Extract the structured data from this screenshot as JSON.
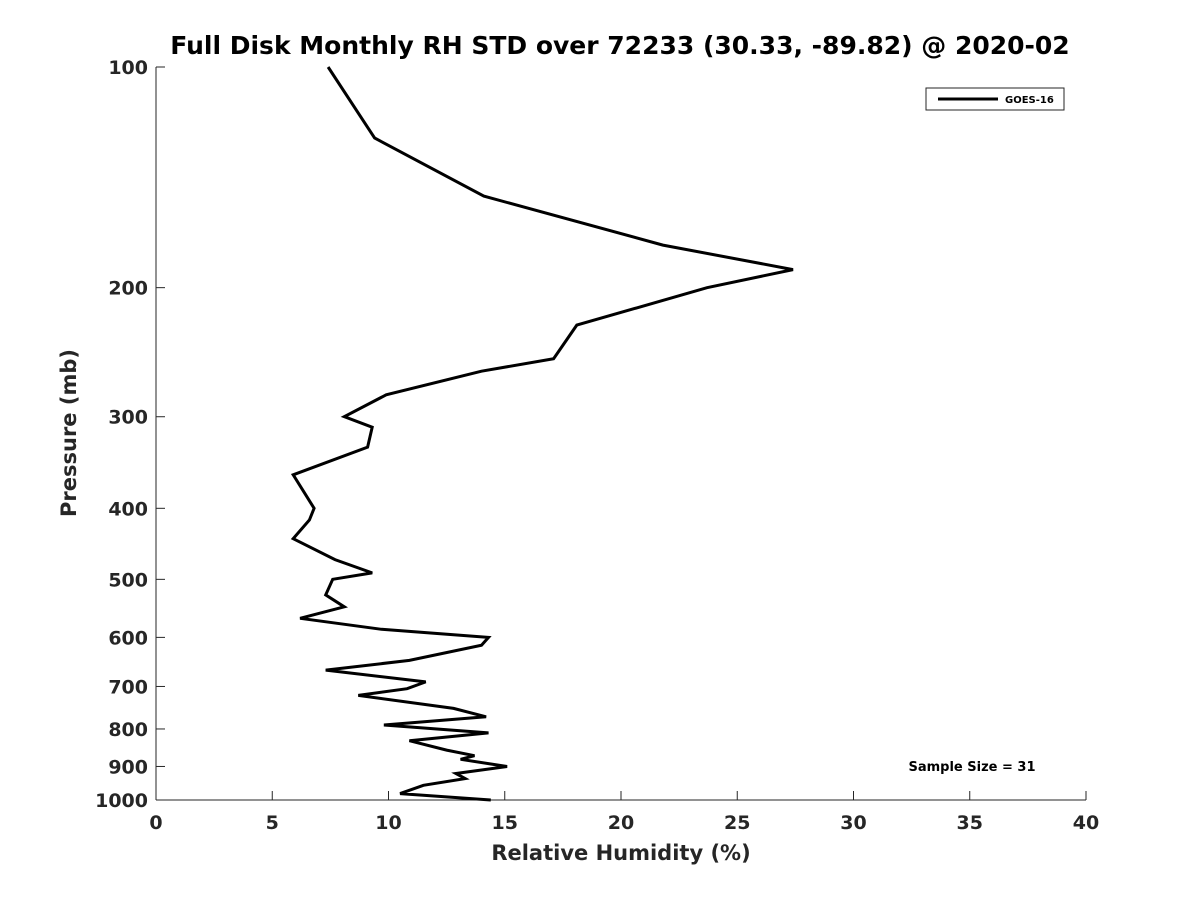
{
  "chart_data": {
    "type": "line",
    "title": "Full Disk Monthly RH STD over 72233 (30.33, -89.82) @ 2020-02",
    "xlabel": "Relative Humidity (%)",
    "ylabel": "Pressure (mb)",
    "xlim": [
      0,
      40
    ],
    "ylim": [
      100,
      1000
    ],
    "y_scale": "log",
    "y_reversed": true,
    "x_ticks": [
      0,
      5,
      10,
      15,
      20,
      25,
      30,
      35,
      40
    ],
    "x_tick_labels": [
      "0",
      "5",
      "10",
      "15",
      "20",
      "25",
      "30",
      "35",
      "40"
    ],
    "y_ticks": [
      100,
      200,
      300,
      400,
      500,
      600,
      700,
      800,
      900,
      1000
    ],
    "y_tick_labels": [
      "100",
      "200",
      "300",
      "400",
      "500",
      "600",
      "700",
      "800",
      "900",
      "1000"
    ],
    "grid": false,
    "legend_position": "top-right",
    "annotation": "Sample Size = 31",
    "series": [
      {
        "name": "GOES-16",
        "color": "#000000",
        "points": [
          [
            7.4,
            100
          ],
          [
            9.4,
            125
          ],
          [
            14.1,
            150
          ],
          [
            21.8,
            175
          ],
          [
            27.4,
            189
          ],
          [
            23.7,
            200
          ],
          [
            18.1,
            225
          ],
          [
            17.1,
            250
          ],
          [
            14.0,
            260
          ],
          [
            9.9,
            280
          ],
          [
            8.1,
            300
          ],
          [
            9.3,
            310
          ],
          [
            9.1,
            330
          ],
          [
            5.9,
            360
          ],
          [
            6.8,
            400
          ],
          [
            6.6,
            415
          ],
          [
            5.9,
            440
          ],
          [
            7.7,
            470
          ],
          [
            9.3,
            490
          ],
          [
            7.6,
            500
          ],
          [
            7.3,
            525
          ],
          [
            8.1,
            545
          ],
          [
            6.2,
            565
          ],
          [
            9.7,
            585
          ],
          [
            14.3,
            600
          ],
          [
            14.0,
            615
          ],
          [
            10.9,
            645
          ],
          [
            7.3,
            665
          ],
          [
            11.6,
            690
          ],
          [
            10.8,
            705
          ],
          [
            8.7,
            720
          ],
          [
            12.8,
            750
          ],
          [
            14.2,
            770
          ],
          [
            9.8,
            790
          ],
          [
            14.3,
            810
          ],
          [
            10.9,
            830
          ],
          [
            12.5,
            855
          ],
          [
            13.7,
            870
          ],
          [
            13.1,
            880
          ],
          [
            15.1,
            900
          ],
          [
            12.9,
            920
          ],
          [
            13.3,
            935
          ],
          [
            11.5,
            955
          ],
          [
            10.5,
            980
          ],
          [
            14.4,
            1000
          ]
        ]
      }
    ]
  }
}
